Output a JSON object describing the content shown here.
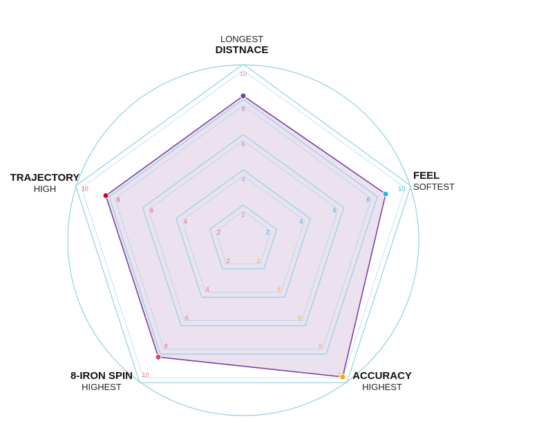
{
  "chart_data": {
    "type": "radar",
    "range": [
      0,
      10
    ],
    "grid_levels": [
      2,
      4,
      6,
      8,
      10
    ],
    "axes": [
      {
        "id": "distance",
        "sub": "LONGEST",
        "main": "DISTNACE",
        "value": 8.2,
        "color": "#7b3fa0",
        "tick_color": "#b58cc7"
      },
      {
        "id": "feel",
        "sub": "SOFTEST",
        "main": "FEEL",
        "value": 8.5,
        "color": "#2bb7d9",
        "tick_color": "#3aaad6"
      },
      {
        "id": "accuracy",
        "sub": "HIGHEST",
        "main": "ACCURACY",
        "value": 9.6,
        "color": "#f5a800",
        "tick_color": "#f3b33b"
      },
      {
        "id": "8-iron-spin",
        "sub": "HIGHEST",
        "main": "8-IRON SPIN",
        "value": 8.2,
        "color": "#e83e72",
        "tick_color": "#e86d8d"
      },
      {
        "id": "trajectory",
        "sub": "HIGH",
        "main": "TRAJECTORY",
        "value": 8.2,
        "color": "#d0021b",
        "tick_color": "#e0586a"
      }
    ],
    "colors": {
      "grid": "#8fd0e3",
      "series_line": "#7b3fa0",
      "series_fill": "#ece2ef"
    }
  }
}
